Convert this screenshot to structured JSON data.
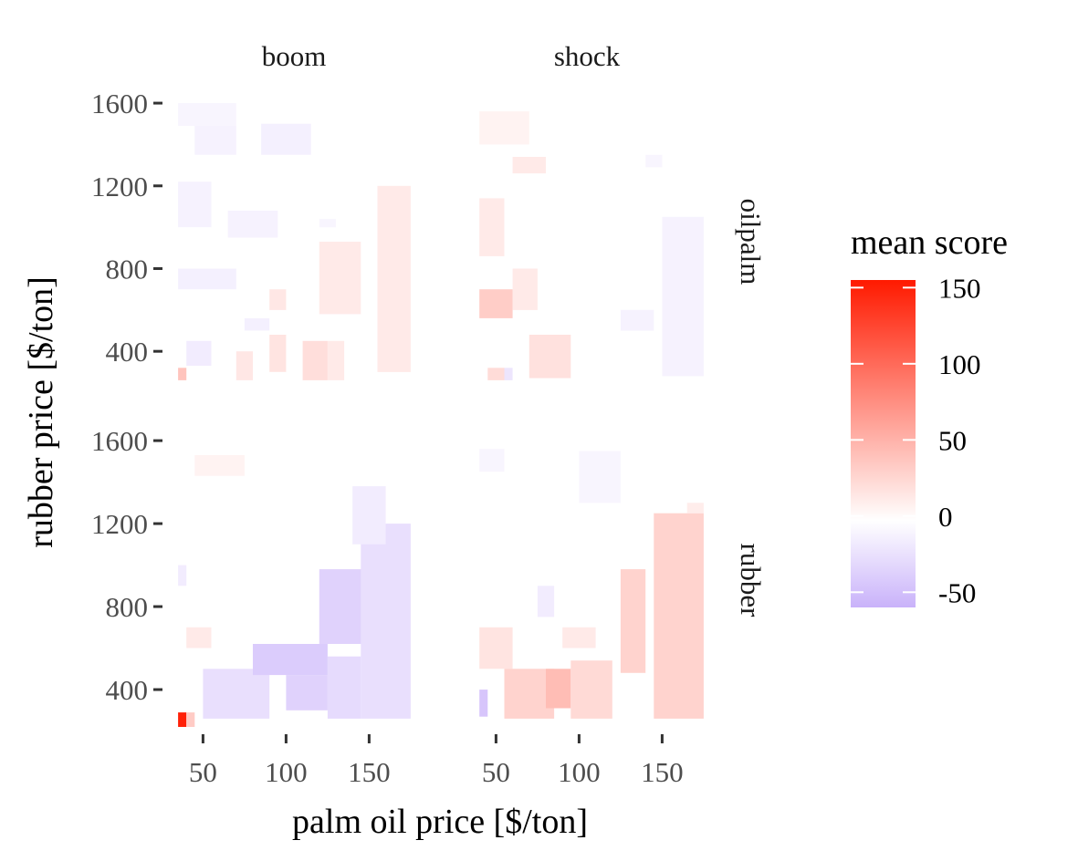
{
  "chart_data": {
    "type": "heatmap",
    "xlabel": "palm oil price [$/ton]",
    "ylabel": "rubber price [$/ton]",
    "x_ticks": [
      "50",
      "100",
      "150"
    ],
    "x_tick_values": [
      50,
      100,
      150
    ],
    "y_ticks": [
      "400",
      "800",
      "1200",
      "1600"
    ],
    "y_tick_values": [
      400,
      800,
      1200,
      1600
    ],
    "xlim": [
      30,
      180
    ],
    "ylim": [
      220,
      1640
    ],
    "grid": false,
    "legend": {
      "title": "mean score",
      "position": "right",
      "range": [
        -60,
        155
      ],
      "breaks": [
        150,
        100,
        50,
        0,
        -50
      ],
      "break_labels": [
        "150",
        "100",
        "50",
        "0",
        "-50"
      ],
      "colors": {
        "low": "#c9b2fa",
        "mid": "#ffffff",
        "high": "#ff1a00"
      }
    },
    "columns": [
      "boom",
      "shock"
    ],
    "rows": [
      "oilpalm",
      "rubber"
    ],
    "panels": [
      {
        "column": "boom",
        "row": "oilpalm",
        "cells": [
          {
            "x": [
              35,
              70
            ],
            "y": [
              1490,
              1600
            ],
            "value": -8
          },
          {
            "x": [
              45,
              70
            ],
            "y": [
              1350,
              1490
            ],
            "value": -10
          },
          {
            "x": [
              85,
              115
            ],
            "y": [
              1350,
              1500
            ],
            "value": -12
          },
          {
            "x": [
              35,
              55
            ],
            "y": [
              1000,
              1220
            ],
            "value": -10
          },
          {
            "x": [
              65,
              95
            ],
            "y": [
              950,
              1080
            ],
            "value": -10
          },
          {
            "x": [
              35,
              70
            ],
            "y": [
              700,
              800
            ],
            "value": -12
          },
          {
            "x": [
              75,
              90
            ],
            "y": [
              500,
              560
            ],
            "value": -12
          },
          {
            "x": [
              40,
              55
            ],
            "y": [
              330,
              450
            ],
            "value": -15
          },
          {
            "x": [
              120,
              130
            ],
            "y": [
              1000,
              1040
            ],
            "value": -8
          },
          {
            "x": [
              155,
              175
            ],
            "y": [
              300,
              1200
            ],
            "value": 14
          },
          {
            "x": [
              120,
              145
            ],
            "y": [
              580,
              930
            ],
            "value": 14
          },
          {
            "x": [
              90,
              100
            ],
            "y": [
              600,
              700
            ],
            "value": 16
          },
          {
            "x": [
              90,
              100
            ],
            "y": [
              300,
              480
            ],
            "value": 18
          },
          {
            "x": [
              110,
              125
            ],
            "y": [
              260,
              450
            ],
            "value": 22
          },
          {
            "x": [
              125,
              135
            ],
            "y": [
              260,
              450
            ],
            "value": 14
          },
          {
            "x": [
              70,
              80
            ],
            "y": [
              260,
              400
            ],
            "value": 16
          },
          {
            "x": [
              35,
              40
            ],
            "y": [
              260,
              320
            ],
            "value": 40
          }
        ]
      },
      {
        "column": "shock",
        "row": "oilpalm",
        "cells": [
          {
            "x": [
              40,
              70
            ],
            "y": [
              1400,
              1560
            ],
            "value": 8
          },
          {
            "x": [
              60,
              80
            ],
            "y": [
              1260,
              1340
            ],
            "value": 14
          },
          {
            "x": [
              40,
              55
            ],
            "y": [
              860,
              1140
            ],
            "value": 14
          },
          {
            "x": [
              40,
              60
            ],
            "y": [
              560,
              700
            ],
            "value": 34
          },
          {
            "x": [
              60,
              75
            ],
            "y": [
              600,
              800
            ],
            "value": 14
          },
          {
            "x": [
              70,
              95
            ],
            "y": [
              270,
              480
            ],
            "value": 20
          },
          {
            "x": [
              45,
              55
            ],
            "y": [
              260,
              320
            ],
            "value": 24
          },
          {
            "x": [
              55,
              60
            ],
            "y": [
              260,
              320
            ],
            "value": -20
          },
          {
            "x": [
              150,
              175
            ],
            "y": [
              280,
              1050
            ],
            "value": -10
          },
          {
            "x": [
              125,
              145
            ],
            "y": [
              500,
              600
            ],
            "value": -10
          },
          {
            "x": [
              140,
              150
            ],
            "y": [
              1290,
              1350
            ],
            "value": -8
          }
        ]
      },
      {
        "column": "boom",
        "row": "rubber",
        "cells": [
          {
            "x": [
              35,
              40
            ],
            "y": [
              220,
              290
            ],
            "value": 150
          },
          {
            "x": [
              40,
              45
            ],
            "y": [
              220,
              290
            ],
            "value": 35
          },
          {
            "x": [
              50,
              90
            ],
            "y": [
              260,
              500
            ],
            "value": -25
          },
          {
            "x": [
              80,
              125
            ],
            "y": [
              470,
              620
            ],
            "value": -40
          },
          {
            "x": [
              100,
              125
            ],
            "y": [
              300,
              470
            ],
            "value": -35
          },
          {
            "x": [
              120,
              150
            ],
            "y": [
              620,
              980
            ],
            "value": -35
          },
          {
            "x": [
              145,
              175
            ],
            "y": [
              260,
              1200
            ],
            "value": -25
          },
          {
            "x": [
              125,
              145
            ],
            "y": [
              260,
              560
            ],
            "value": -28
          },
          {
            "x": [
              140,
              160
            ],
            "y": [
              1100,
              1380
            ],
            "value": -15
          },
          {
            "x": [
              40,
              55
            ],
            "y": [
              600,
              700
            ],
            "value": 14
          },
          {
            "x": [
              45,
              75
            ],
            "y": [
              1430,
              1530
            ],
            "value": 8
          },
          {
            "x": [
              35,
              40
            ],
            "y": [
              900,
              1000
            ],
            "value": -15
          }
        ]
      },
      {
        "column": "shock",
        "row": "rubber",
        "cells": [
          {
            "x": [
              40,
              45
            ],
            "y": [
              270,
              400
            ],
            "value": -45
          },
          {
            "x": [
              40,
              60
            ],
            "y": [
              500,
              700
            ],
            "value": 18
          },
          {
            "x": [
              55,
              85
            ],
            "y": [
              260,
              500
            ],
            "value": 30
          },
          {
            "x": [
              80,
              95
            ],
            "y": [
              310,
              500
            ],
            "value": 45
          },
          {
            "x": [
              95,
              120
            ],
            "y": [
              260,
              540
            ],
            "value": 25
          },
          {
            "x": [
              125,
              140
            ],
            "y": [
              480,
              980
            ],
            "value": 30
          },
          {
            "x": [
              145,
              175
            ],
            "y": [
              260,
              1250
            ],
            "value": 30
          },
          {
            "x": [
              90,
              110
            ],
            "y": [
              600,
              700
            ],
            "value": 14
          },
          {
            "x": [
              75,
              85
            ],
            "y": [
              750,
              900
            ],
            "value": -15
          },
          {
            "x": [
              100,
              125
            ],
            "y": [
              1300,
              1550
            ],
            "value": -8
          },
          {
            "x": [
              165,
              175
            ],
            "y": [
              1250,
              1300
            ],
            "value": 12
          },
          {
            "x": [
              40,
              55
            ],
            "y": [
              1450,
              1560
            ],
            "value": -8
          }
        ]
      }
    ]
  }
}
